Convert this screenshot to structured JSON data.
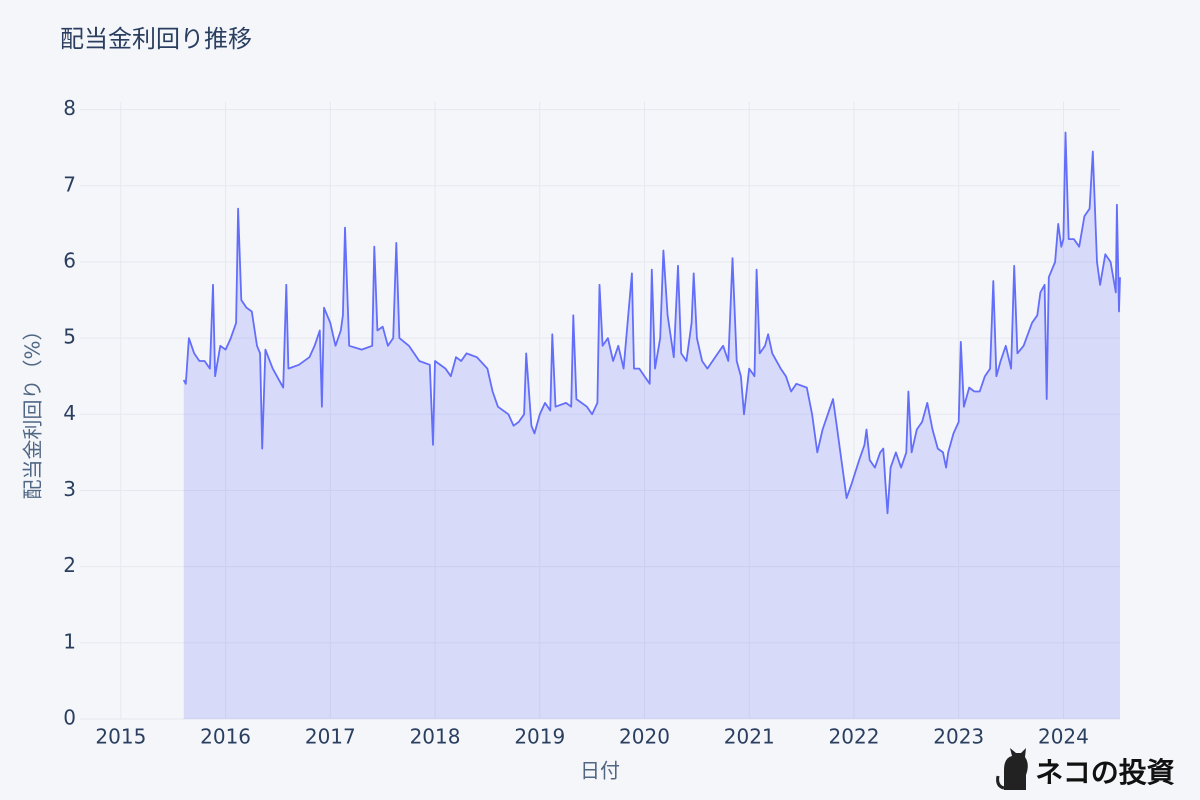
{
  "chart_data": {
    "type": "area",
    "title": "配当金利回り推移",
    "xlabel": "日付",
    "ylabel": "配当金利回り（%）",
    "watermark": "ネコの投資",
    "color": "#636efa",
    "grid": true,
    "xlim": [
      2014.61,
      2024.54
    ],
    "xticks": [
      2015,
      2016,
      2017,
      2018,
      2019,
      2020,
      2021,
      2022,
      2023,
      2024
    ],
    "ylim": [
      0,
      8.1
    ],
    "yticks": [
      0,
      1,
      2,
      3,
      4,
      5,
      6,
      7,
      8
    ],
    "x": [
      2015.6,
      2015.62,
      2015.65,
      2015.7,
      2015.75,
      2015.8,
      2015.85,
      2015.88,
      2015.9,
      2015.95,
      2016,
      2016.05,
      2016.1,
      2016.12,
      2016.15,
      2016.2,
      2016.25,
      2016.3,
      2016.33,
      2016.35,
      2016.38,
      2016.45,
      2016.55,
      2016.58,
      2016.6,
      2016.7,
      2016.8,
      2016.85,
      2016.9,
      2016.92,
      2016.94,
      2017,
      2017.05,
      2017.1,
      2017.12,
      2017.14,
      2017.18,
      2017.3,
      2017.4,
      2017.42,
      2017.45,
      2017.5,
      2017.55,
      2017.6,
      2017.63,
      2017.66,
      2017.75,
      2017.85,
      2017.95,
      2017.98,
      2018,
      2018.1,
      2018.15,
      2018.2,
      2018.25,
      2018.3,
      2018.4,
      2018.5,
      2018.55,
      2018.6,
      2018.7,
      2018.75,
      2018.8,
      2018.85,
      2018.87,
      2018.92,
      2018.95,
      2019,
      2019.05,
      2019.1,
      2019.12,
      2019.15,
      2019.25,
      2019.3,
      2019.32,
      2019.35,
      2019.45,
      2019.5,
      2019.55,
      2019.57,
      2019.6,
      2019.65,
      2019.7,
      2019.75,
      2019.8,
      2019.88,
      2019.9,
      2019.95,
      2020,
      2020.05,
      2020.07,
      2020.1,
      2020.15,
      2020.18,
      2020.22,
      2020.28,
      2020.32,
      2020.35,
      2020.4,
      2020.45,
      2020.47,
      2020.5,
      2020.55,
      2020.6,
      2020.7,
      2020.75,
      2020.8,
      2020.84,
      2020.88,
      2020.92,
      2020.95,
      2021,
      2021.05,
      2021.07,
      2021.1,
      2021.15,
      2021.18,
      2021.22,
      2021.3,
      2021.35,
      2021.4,
      2021.45,
      2021.55,
      2021.6,
      2021.65,
      2021.7,
      2021.75,
      2021.8,
      2021.83,
      2021.88,
      2021.9,
      2021.93,
      2021.98,
      2022.05,
      2022.1,
      2022.12,
      2022.15,
      2022.2,
      2022.25,
      2022.28,
      2022.3,
      2022.32,
      2022.35,
      2022.4,
      2022.45,
      2022.5,
      2022.52,
      2022.55,
      2022.6,
      2022.65,
      2022.7,
      2022.75,
      2022.8,
      2022.85,
      2022.88,
      2022.9,
      2022.95,
      2023,
      2023.02,
      2023.05,
      2023.1,
      2023.15,
      2023.2,
      2023.25,
      2023.3,
      2023.33,
      2023.36,
      2023.4,
      2023.45,
      2023.5,
      2023.53,
      2023.56,
      2023.62,
      2023.7,
      2023.75,
      2023.78,
      2023.82,
      2023.84,
      2023.86,
      2023.92,
      2023.95,
      2023.98,
      2024,
      2024.02,
      2024.05,
      2024.1,
      2024.15,
      2024.2,
      2024.25,
      2024.28,
      2024.32,
      2024.35,
      2024.4,
      2024.45,
      2024.5,
      2024.51,
      2024.53,
      2024.54
    ],
    "values": [
      4.45,
      4.4,
      5.0,
      4.8,
      4.7,
      4.7,
      4.6,
      5.7,
      4.5,
      4.9,
      4.85,
      5.0,
      5.2,
      6.7,
      5.5,
      5.4,
      5.35,
      4.9,
      4.8,
      3.55,
      4.85,
      4.6,
      4.35,
      5.7,
      4.6,
      4.65,
      4.75,
      4.9,
      5.1,
      4.1,
      5.4,
      5.2,
      4.9,
      5.1,
      5.3,
      6.45,
      4.9,
      4.85,
      4.9,
      6.2,
      5.1,
      5.15,
      4.9,
      5.0,
      6.25,
      5.0,
      4.9,
      4.7,
      4.65,
      3.6,
      4.7,
      4.6,
      4.5,
      4.75,
      4.7,
      4.8,
      4.75,
      4.6,
      4.3,
      4.1,
      4.0,
      3.85,
      3.9,
      4.0,
      4.8,
      3.85,
      3.75,
      4.0,
      4.15,
      4.05,
      5.05,
      4.1,
      4.15,
      4.1,
      5.3,
      4.2,
      4.1,
      4.0,
      4.15,
      5.7,
      4.9,
      5.0,
      4.7,
      4.9,
      4.6,
      5.85,
      4.6,
      4.6,
      4.5,
      4.4,
      5.9,
      4.6,
      5.0,
      6.15,
      5.3,
      4.75,
      5.95,
      4.8,
      4.7,
      5.2,
      5.85,
      5.0,
      4.7,
      4.6,
      4.8,
      4.9,
      4.7,
      6.05,
      4.7,
      4.5,
      4.0,
      4.6,
      4.5,
      5.9,
      4.8,
      4.9,
      5.05,
      4.8,
      4.6,
      4.5,
      4.3,
      4.4,
      4.35,
      4.0,
      3.5,
      3.8,
      4.0,
      4.2,
      3.9,
      3.4,
      3.2,
      2.9,
      3.1,
      3.4,
      3.6,
      3.8,
      3.4,
      3.3,
      3.5,
      3.55,
      3.1,
      2.7,
      3.3,
      3.5,
      3.3,
      3.5,
      4.3,
      3.5,
      3.8,
      3.9,
      4.15,
      3.8,
      3.55,
      3.5,
      3.3,
      3.5,
      3.75,
      3.9,
      4.95,
      4.1,
      4.35,
      4.3,
      4.3,
      4.5,
      4.6,
      5.75,
      4.5,
      4.7,
      4.9,
      4.6,
      5.95,
      4.8,
      4.9,
      5.2,
      5.3,
      5.6,
      5.7,
      4.2,
      5.8,
      6.0,
      6.5,
      6.2,
      6.3,
      7.7,
      6.3,
      6.3,
      6.2,
      6.6,
      6.7,
      7.45,
      6.0,
      5.7,
      6.1,
      6.0,
      5.6,
      6.75,
      5.35,
      5.8
    ]
  }
}
